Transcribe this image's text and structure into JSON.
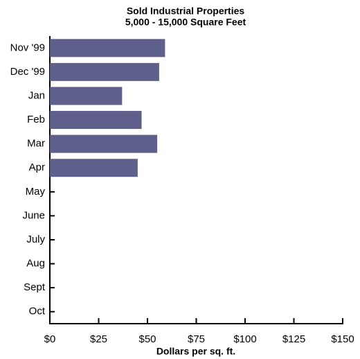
{
  "chart_data": {
    "type": "bar",
    "orientation": "horizontal",
    "title": "Sold Industrial Properties",
    "subtitle": "5,000 - 15,000 Square Feet",
    "x_label": "Dollars per sq. ft.",
    "categories": [
      "Nov '99",
      "Dec '99",
      "Jan",
      "Feb",
      "Mar",
      "Apr",
      "May",
      "June",
      "July",
      "Aug",
      "Sept",
      "Oct"
    ],
    "values": [
      59,
      56,
      37,
      47,
      55,
      45,
      null,
      null,
      null,
      null,
      null,
      null
    ],
    "color": "#5f5f8c",
    "xlim": [
      0,
      150
    ],
    "xticks": [
      {
        "value": 0,
        "label": "$0"
      },
      {
        "value": 25,
        "label": "$25"
      },
      {
        "value": 50,
        "label": "$50"
      },
      {
        "value": 75,
        "label": "$75"
      },
      {
        "value": 100,
        "label": "$100"
      },
      {
        "value": 125,
        "label": "$125"
      },
      {
        "value": 150,
        "label": "$150"
      }
    ],
    "grid": false
  }
}
